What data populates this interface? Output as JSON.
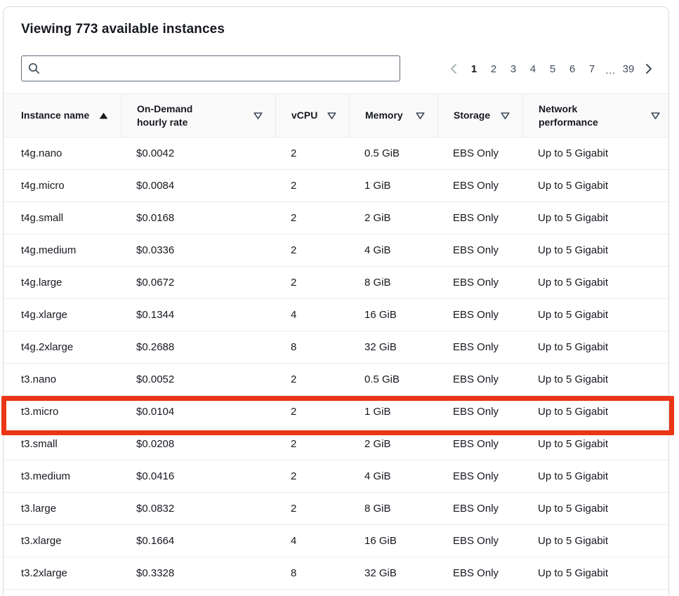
{
  "header": {
    "title": "Viewing 773 available instances"
  },
  "search": {
    "placeholder": "",
    "value": ""
  },
  "pagination": {
    "current": "1",
    "pages": [
      "1",
      "2",
      "3",
      "4",
      "5",
      "6",
      "7",
      "…",
      "39"
    ],
    "prev_enabled": false,
    "next_enabled": true
  },
  "table": {
    "columns": [
      {
        "label": "Instance name",
        "sort": "ascending"
      },
      {
        "label": "On-Demand hourly rate",
        "sort": "none"
      },
      {
        "label": "vCPU",
        "sort": "none"
      },
      {
        "label": "Memory",
        "sort": "none"
      },
      {
        "label": "Storage",
        "sort": "none"
      },
      {
        "label": "Network performance",
        "sort": "none"
      }
    ],
    "rows": [
      [
        "t4g.nano",
        "$0.0042",
        "2",
        "0.5 GiB",
        "EBS Only",
        "Up to 5 Gigabit"
      ],
      [
        "t4g.micro",
        "$0.0084",
        "2",
        "1 GiB",
        "EBS Only",
        "Up to 5 Gigabit"
      ],
      [
        "t4g.small",
        "$0.0168",
        "2",
        "2 GiB",
        "EBS Only",
        "Up to 5 Gigabit"
      ],
      [
        "t4g.medium",
        "$0.0336",
        "2",
        "4 GiB",
        "EBS Only",
        "Up to 5 Gigabit"
      ],
      [
        "t4g.large",
        "$0.0672",
        "2",
        "8 GiB",
        "EBS Only",
        "Up to 5 Gigabit"
      ],
      [
        "t4g.xlarge",
        "$0.1344",
        "4",
        "16 GiB",
        "EBS Only",
        "Up to 5 Gigabit"
      ],
      [
        "t4g.2xlarge",
        "$0.2688",
        "8",
        "32 GiB",
        "EBS Only",
        "Up to 5 Gigabit"
      ],
      [
        "t3.nano",
        "$0.0052",
        "2",
        "0.5 GiB",
        "EBS Only",
        "Up to 5 Gigabit"
      ],
      [
        "t3.micro",
        "$0.0104",
        "2",
        "1 GiB",
        "EBS Only",
        "Up to 5 Gigabit"
      ],
      [
        "t3.small",
        "$0.0208",
        "2",
        "2 GiB",
        "EBS Only",
        "Up to 5 Gigabit"
      ],
      [
        "t3.medium",
        "$0.0416",
        "2",
        "4 GiB",
        "EBS Only",
        "Up to 5 Gigabit"
      ],
      [
        "t3.large",
        "$0.0832",
        "2",
        "8 GiB",
        "EBS Only",
        "Up to 5 Gigabit"
      ],
      [
        "t3.xlarge",
        "$0.1664",
        "4",
        "16 GiB",
        "EBS Only",
        "Up to 5 Gigabit"
      ],
      [
        "t3.2xlarge",
        "$0.3328",
        "8",
        "32 GiB",
        "EBS Only",
        "Up to 5 Gigabit"
      ]
    ],
    "highlighted_row": "t3.micro"
  },
  "colors": {
    "highlight_box": "#ea3517",
    "row_divider": "#eaeded",
    "header_bg": "#fafafa"
  }
}
